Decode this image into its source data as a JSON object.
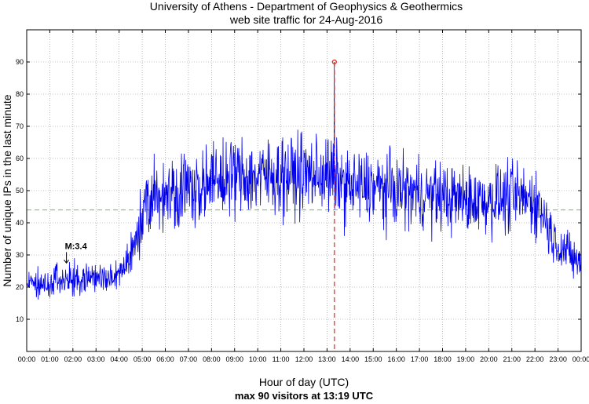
{
  "chart_data": {
    "type": "line",
    "title": "University of Athens - Department of Geophysics & Geothermics",
    "subtitle": "web site traffic for 24-Aug-2016",
    "xlabel": "Hour of day (UTC)",
    "ylabel": "Number of unique IPs in the last minute",
    "footer": "max 90 visitors at 13:19 UTC",
    "xlim": [
      0,
      24
    ],
    "ylim": [
      0,
      100
    ],
    "x_tick_labels": [
      "00:00",
      "01:00",
      "02:00",
      "03:00",
      "04:00",
      "05:00",
      "06:00",
      "07:00",
      "08:00",
      "09:00",
      "10:00",
      "11:00",
      "12:00",
      "13:00",
      "14:00",
      "15:00",
      "16:00",
      "17:00",
      "18:00",
      "19:00",
      "20:00",
      "21:00",
      "22:00",
      "23:00",
      "00:00"
    ],
    "y_tick_labels": [
      "10",
      "20",
      "30",
      "40",
      "50",
      "60",
      "70",
      "80",
      "90"
    ],
    "grid": true,
    "mean_line": 44,
    "max_point": {
      "x": 13.32,
      "y": 90
    },
    "annotation": {
      "text": "M:3.4",
      "x": 1.72,
      "y": 27
    },
    "series_profile": {
      "x": [
        0,
        1,
        2,
        3,
        4,
        4.5,
        5,
        5.5,
        6,
        7,
        8,
        9,
        10,
        11,
        12,
        13,
        14,
        15,
        16,
        17,
        18,
        19,
        20,
        21,
        22,
        22.4,
        22.8,
        23.5,
        24
      ],
      "y": [
        21,
        21,
        22,
        23,
        23,
        30,
        42,
        48,
        49,
        51,
        52,
        55,
        54,
        55,
        55,
        55,
        51,
        51,
        50,
        49,
        48,
        47,
        47,
        48,
        47,
        42,
        35,
        30,
        27
      ]
    },
    "colors": {
      "series": "#0000ee",
      "mean_line": "#55cc55",
      "max_marker": "#ee2222",
      "grid": "#888888"
    }
  }
}
